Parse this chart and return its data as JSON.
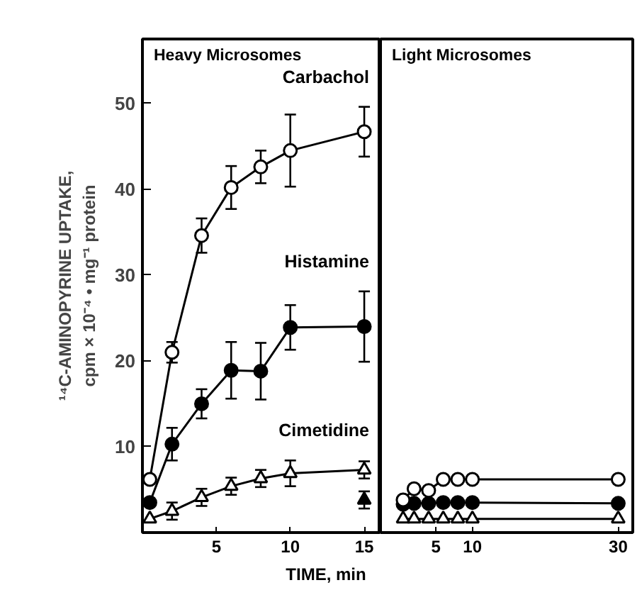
{
  "chart_data": [
    {
      "type": "line",
      "title": "Heavy Microsomes",
      "ylabel": "¹⁴C-AMINOPYRINE UPTAKE,\ncpm × 10⁻⁴ • mg⁻¹ protein",
      "xlim": [
        0,
        16.1
      ],
      "ylim": [
        0,
        57.5
      ],
      "xticks": [
        5,
        10,
        15
      ],
      "yticks": [
        10,
        20,
        30,
        40,
        50
      ],
      "grid": false,
      "series": [
        {
          "name": "Carbachol",
          "color": "#000000",
          "colors": [
            "#ffffff",
            "#ffffff",
            "#ffffff",
            "#ffffff",
            "#ffffff",
            "#ffffff",
            "#ffffff"
          ],
          "marker": "circle",
          "x": [
            0.5,
            2,
            4,
            6,
            8,
            10,
            15
          ],
          "values": [
            6.2,
            21,
            34.6,
            40.2,
            42.6,
            44.5,
            46.7
          ],
          "errors": [
            null,
            1.2,
            2,
            2.5,
            1.9,
            4.2,
            2.9
          ]
        },
        {
          "name": "Histamine",
          "color": "#000000",
          "marker": "circle",
          "x": [
            0.5,
            2,
            4,
            6,
            8,
            10,
            15
          ],
          "values": [
            3.5,
            10.3,
            15,
            18.9,
            18.8,
            23.9,
            24
          ],
          "errors": [
            null,
            1.9,
            1.7,
            3.3,
            3.3,
            2.6,
            4.1
          ]
        },
        {
          "name": "Cimetidine",
          "color": "#000000",
          "colors": [
            "#ffffff",
            "#ffffff",
            "#ffffff",
            "#ffffff",
            "#ffffff",
            "#ffffff",
            "#ffffff"
          ],
          "marker": "triangle",
          "x": [
            0.5,
            2,
            4,
            6,
            8,
            10,
            15
          ],
          "values": [
            1.6,
            2.5,
            4.1,
            5.4,
            6.3,
            6.9,
            7.3
          ],
          "errors": [
            null,
            1,
            1,
            1,
            1,
            1.5,
            1
          ]
        },
        {
          "type": "scatter",
          "color": "#000000",
          "marker": "triangle",
          "x": [
            15
          ],
          "values": [
            3.8
          ],
          "errors": [
            1
          ]
        }
      ]
    },
    {
      "type": "line",
      "title": "Light Microsomes",
      "xlabel": "TIME, min",
      "xlim": [
        -2.6,
        32
      ],
      "ylim": [
        0,
        57.5
      ],
      "xticks": [
        5,
        10,
        30
      ],
      "tick_labels": "x",
      "grid": false,
      "series": [
        {
          "color": "#000000",
          "colors": [
            "#ffffff",
            "#ffffff",
            "#ffffff",
            "#ffffff",
            "#ffffff",
            "#ffffff",
            "#ffffff"
          ],
          "marker": "circle",
          "x": [
            0.5,
            2,
            4,
            6,
            8,
            10,
            30
          ],
          "values": [
            3.8,
            5.1,
            4.9,
            6.2,
            6.2,
            6.2,
            6.2
          ]
        },
        {
          "color": "#000000",
          "marker": "circle",
          "x": [
            0.5,
            2,
            4,
            6,
            8,
            10,
            30
          ],
          "values": [
            3.3,
            3.4,
            3.4,
            3.5,
            3.5,
            3.5,
            3.4
          ]
        },
        {
          "color": "#000000",
          "colors": [
            "#ffffff",
            "#ffffff",
            "#ffffff",
            "#ffffff",
            "#ffffff",
            "#ffffff",
            "#ffffff"
          ],
          "marker": "triangle",
          "x": [
            0.5,
            2,
            4,
            6,
            8,
            10,
            30
          ],
          "values": [
            1.6,
            1.6,
            1.6,
            1.6,
            1.6,
            1.6,
            1.6
          ]
        }
      ]
    }
  ]
}
